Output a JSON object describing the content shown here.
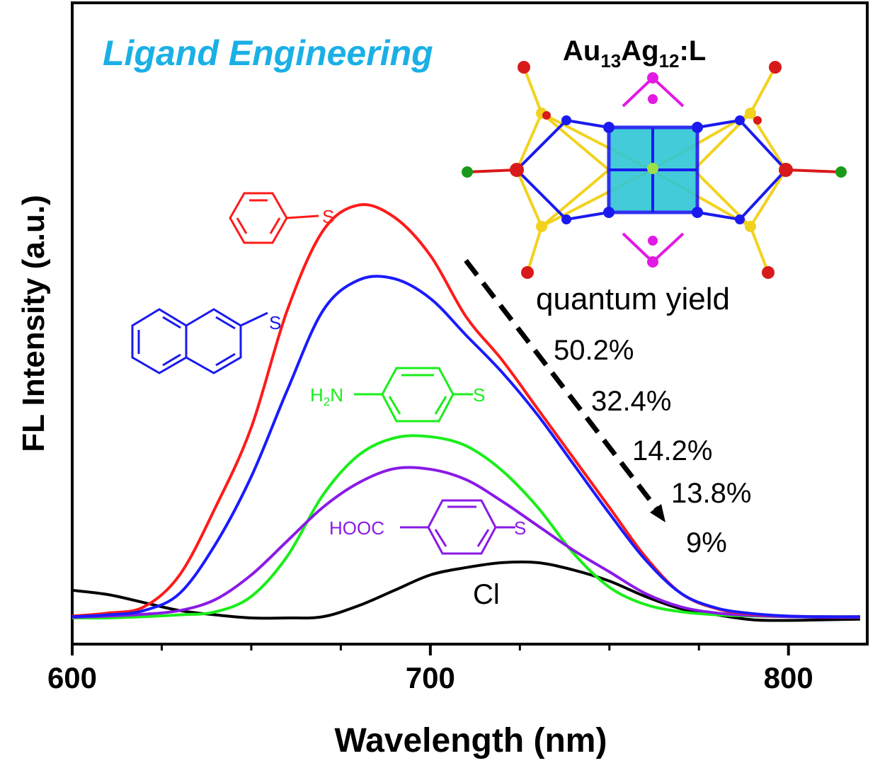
{
  "chart_data": {
    "type": "line",
    "title": "Ligand Engineering",
    "inset_label": {
      "main": "Au",
      "sub1": "13",
      "mid": "Ag",
      "sub2": "12",
      "tail": ":L"
    },
    "xlabel": "Wavelength (nm)",
    "ylabel": "FL Intensity (a.u.)",
    "xlim": [
      600,
      822
    ],
    "ylim": [
      0,
      1
    ],
    "x_ticks": [
      600,
      700,
      800
    ],
    "x_tick_labels": [
      "600",
      "700",
      "800"
    ],
    "x_minor_ticks": [
      625,
      650,
      675,
      725,
      750,
      775
    ],
    "grid": false,
    "x": [
      600,
      610,
      620,
      630,
      640,
      650,
      660,
      670,
      680,
      690,
      700,
      710,
      720,
      730,
      740,
      750,
      760,
      770,
      780,
      790,
      800,
      810,
      820
    ],
    "series": [
      {
        "name": "phenylthiolate",
        "color": "#ff1a1a",
        "quantum_yield": "50.2%",
        "values": [
          0.003,
          0.008,
          0.018,
          0.07,
          0.18,
          0.31,
          0.5,
          0.63,
          0.672,
          0.652,
          0.59,
          0.49,
          0.42,
          0.34,
          0.26,
          0.18,
          0.1,
          0.04,
          0.015,
          0.006,
          0.003,
          0.002,
          0.002
        ]
      },
      {
        "name": "2-naphthalenethiolate",
        "color": "#1a1aff",
        "quantum_yield": "32.4%",
        "values": [
          0.002,
          0.005,
          0.012,
          0.04,
          0.12,
          0.23,
          0.37,
          0.5,
          0.55,
          0.552,
          0.52,
          0.46,
          0.4,
          0.33,
          0.25,
          0.17,
          0.095,
          0.04,
          0.016,
          0.007,
          0.003,
          0.002,
          0.002
        ]
      },
      {
        "name": "4-aminothiophenolate",
        "color": "#1aee1a",
        "quantum_yield": "14.2%",
        "values": [
          0.0,
          0.0,
          0.002,
          0.005,
          0.01,
          0.035,
          0.1,
          0.2,
          0.265,
          0.293,
          0.295,
          0.28,
          0.24,
          0.18,
          0.105,
          0.05,
          0.022,
          0.01,
          0.005,
          0.003,
          0.002,
          0.002,
          0.002
        ]
      },
      {
        "name": "4-mercaptobenzoic acid",
        "color": "#8a1ae6",
        "quantum_yield": "13.8%",
        "values": [
          0.001,
          0.003,
          0.006,
          0.012,
          0.03,
          0.07,
          0.125,
          0.18,
          0.22,
          0.243,
          0.242,
          0.225,
          0.19,
          0.15,
          0.11,
          0.075,
          0.04,
          0.018,
          0.008,
          0.004,
          0.002,
          0.001,
          0.001
        ]
      },
      {
        "name": "Cl",
        "color": "#000000",
        "quantum_yield": "9%",
        "values": [
          0.045,
          0.038,
          0.025,
          0.012,
          0.005,
          0.0,
          0.0,
          0.002,
          0.02,
          0.045,
          0.07,
          0.082,
          0.09,
          0.09,
          0.078,
          0.06,
          0.035,
          0.015,
          0.005,
          -0.003,
          -0.004,
          -0.003,
          -0.002
        ]
      }
    ],
    "annotations": {
      "quantum_yield_label": "quantum yield",
      "qy_values": [
        "50.2%",
        "32.4%",
        "14.2%",
        "13.8%",
        "9%"
      ],
      "cl_label": "Cl",
      "ligand_labels": {
        "s": "S",
        "amine": "H2N",
        "amine_main": "H",
        "amine_sub": "2",
        "amine_tail": "N",
        "acid": "HOOC"
      }
    },
    "colors": {
      "title": "#1ab0e6",
      "cluster_cube": "#2fc6d6",
      "gold": "#f2d21e"
    }
  }
}
